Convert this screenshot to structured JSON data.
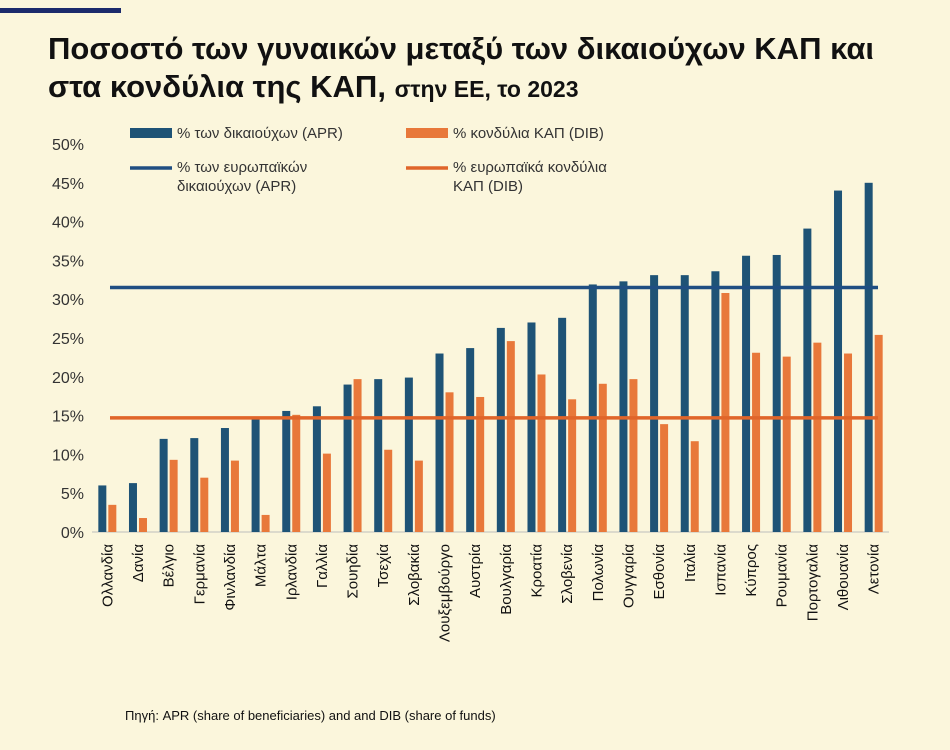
{
  "header": {
    "title_main": "Ποσοστό των γυναικών μεταξύ των δικαιούχων ΚΑΠ και στα κονδύλια της ΚΑΠ,",
    "title_sub": "στην ΕΕ, το 2023"
  },
  "footer": {
    "source": "Πηγή: APR (share of beneficiaries) and  and DIB (share of funds)"
  },
  "colors": {
    "apr": "#1e5376",
    "dib": "#e8783a",
    "eu_apr": "#1f4e82",
    "eu_dib": "#e0652a",
    "background": "#fbf6dc"
  },
  "chart_data": {
    "type": "bar",
    "title": "Ποσοστό των γυναικών μεταξύ των δικαιούχων ΚΑΠ και στα κονδύλια της ΚΑΠ, στην ΕΕ, το 2023",
    "categories": [
      "Ολλανδία",
      "Δανία",
      "Βέλγιο",
      "Γερμανία",
      "Φινλανδία",
      "Μάλτα",
      "Ιρλανδία",
      "Γαλλία",
      "Σουηδία",
      "Τσεχία",
      "Σλοβακία",
      "Λουξεμβούργο",
      "Αυστρία",
      "Βουλγαρία",
      "Κροατία",
      "Σλοβενία",
      "Πολωνία",
      "Ουγγαρία",
      "Εσθονία",
      "Ιταλία",
      "Ισπανία",
      "Κύπρος",
      "Ρουμανία",
      "Πορτογαλία",
      "Λιθουανία",
      "Λετονία"
    ],
    "series": [
      {
        "name": "% των δικαιούχων (APR)",
        "values": [
          6.0,
          6.3,
          12.0,
          12.1,
          13.4,
          14.8,
          15.6,
          16.2,
          19.0,
          19.7,
          19.9,
          23.0,
          23.7,
          26.3,
          27.0,
          27.6,
          31.9,
          32.3,
          33.1,
          33.1,
          33.6,
          35.6,
          35.7,
          39.1,
          44.0,
          45.0
        ]
      },
      {
        "name": "% κονδύλια ΚΑΠ (DIB)",
        "values": [
          3.5,
          1.8,
          9.3,
          7.0,
          9.2,
          2.2,
          15.1,
          10.1,
          19.7,
          10.6,
          9.2,
          18.0,
          17.4,
          24.6,
          20.3,
          17.1,
          19.1,
          19.7,
          13.9,
          11.7,
          30.8,
          23.1,
          22.6,
          24.4,
          23.0,
          25.4
        ]
      }
    ],
    "reference_lines": [
      {
        "name": "% των ευρωπαϊκών δικαιούχων (APR)",
        "value": 31.5
      },
      {
        "name": "% ευρωπαϊκά κονδύλια ΚΑΠ (DIB)",
        "value": 14.7
      }
    ],
    "ylim": [
      0,
      50
    ],
    "yticks": [
      "0%",
      "5%",
      "10%",
      "15%",
      "20%",
      "25%",
      "30%",
      "35%",
      "40%",
      "45%",
      "50%"
    ],
    "xlabel": "",
    "ylabel": "",
    "legend_position": "top-left",
    "grid": false
  }
}
